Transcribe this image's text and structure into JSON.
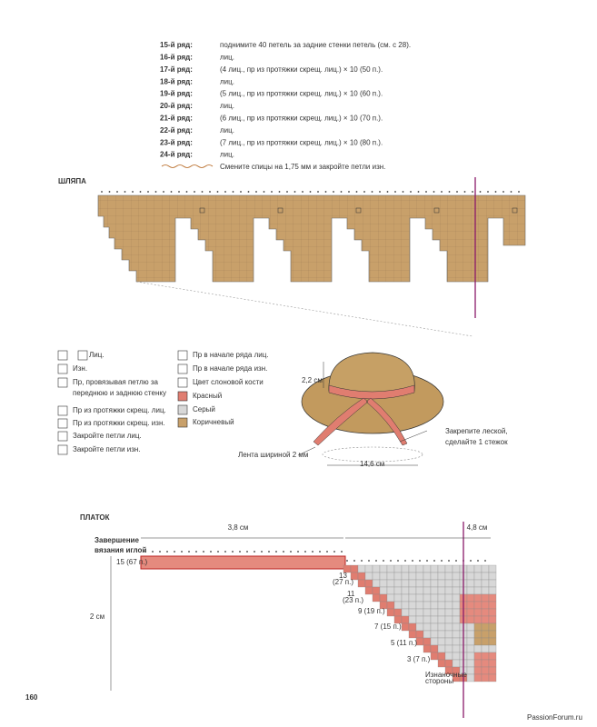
{
  "rows": [
    {
      "label": "15-й ряд:",
      "text": "поднимите 40 петель за задние стенки петель (см. с 28)."
    },
    {
      "label": "16-й ряд:",
      "text": "лиц."
    },
    {
      "label": "17-й ряд:",
      "text": "(4 лиц., пр из протяжки скрещ. лиц.) × 10 (50 п.)."
    },
    {
      "label": "18-й ряд:",
      "text": "лиц."
    },
    {
      "label": "19-й ряд:",
      "text": "(5 лиц., пр из протяжки скрещ. лиц.) × 10 (60 п.)."
    },
    {
      "label": "20-й ряд:",
      "text": "лиц."
    },
    {
      "label": "21-й ряд:",
      "text": "(6 лиц., пр из протяжки скрещ. лиц.) × 10 (70 п.)."
    },
    {
      "label": "22-й ряд:",
      "text": "лиц."
    },
    {
      "label": "23-й ряд:",
      "text": "(7 лиц., пр из протяжки скрещ. лиц.) × 10 (80 п.)."
    },
    {
      "label": "24-й ряд:",
      "text": "лиц."
    }
  ],
  "final_row": "Смените спицы на 1,75 мм и закройте петли изн.",
  "hat": {
    "title": "ШЛЯПА",
    "height": "2,2 см",
    "fasten_note": [
      "Закрепите леской,",
      "сделайте 1 стежок"
    ],
    "ribbon": "Лента шириной 2 мм",
    "width": "14,6 см"
  },
  "legend": [
    {
      "text": [
        "Лиц."
      ]
    },
    {
      "text": [
        "Изн."
      ]
    },
    {
      "text": [
        "Пр, провязывая петлю за",
        "переднюю и заднюю стенку"
      ]
    },
    {
      "text": [
        "Пр из протяжки скрещ. лиц."
      ]
    },
    {
      "text": [
        "Пр из протяжки скрещ. изн."
      ]
    },
    {
      "text": [
        "Закройте петли лиц."
      ]
    },
    {
      "text": [
        "Закройте петли изн."
      ]
    },
    {
      "text": [
        "Пр в начале ряда лиц."
      ]
    },
    {
      "text": [
        "Пр в начале ряда изн."
      ]
    },
    {
      "text": [
        "Цвет слоновой кости"
      ]
    },
    {
      "text": [
        "Красный"
      ]
    },
    {
      "text": [
        "Серый"
      ]
    },
    {
      "text": [
        "Коричневый"
      ]
    }
  ],
  "shawl": {
    "title": "ПЛАТОК",
    "finish_note": [
      "Завершение",
      "вязания иглой"
    ],
    "width_left": "3,8 см",
    "width_right": "4,8 см",
    "height": "2 см",
    "row_labels": [
      "15 (67 п.)",
      "13",
      "(27 п.)",
      "11",
      "(23 п.)",
      "9 (19 п.)",
      "7 (15 п.)",
      "5 (11 п.)",
      "3 (7 п.)"
    ],
    "wrong_side": [
      "Изнаночные",
      "стороны"
    ]
  },
  "page_number": "160",
  "watermark": "PassionForum.ru"
}
